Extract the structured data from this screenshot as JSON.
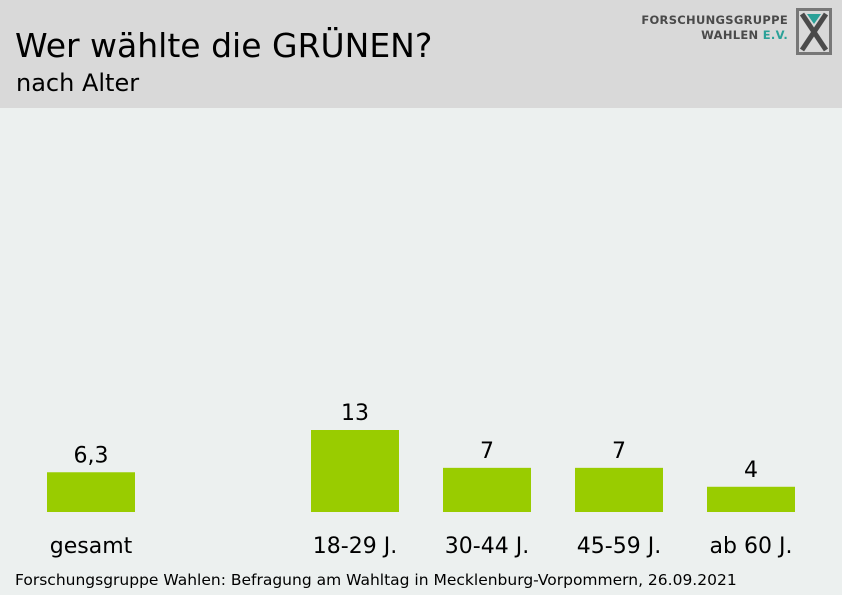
{
  "header": {
    "title": "Wer wählte die GRÜNEN?",
    "subtitle": "nach Alter"
  },
  "logo": {
    "line1": "FORSCHUNGSGRUPPE",
    "line2_main": "WAHLEN ",
    "line2_accent": "E.V.",
    "icon": "x-mark-logo-icon"
  },
  "source": "Forschungsgruppe Wahlen: Befragung am Wahltag in Mecklenburg-Vorpommern, 26.09.2021",
  "chart_data": {
    "type": "bar",
    "title": "Wer wählte die GRÜNEN?",
    "subtitle": "nach Alter",
    "categories": [
      "gesamt",
      "18-29 J.",
      "30-44 J.",
      "45-59 J.",
      "ab 60 J."
    ],
    "values": [
      6.3,
      13,
      7,
      7,
      4
    ],
    "value_labels": [
      "6,3",
      "13",
      "7",
      "7",
      "4"
    ],
    "bar_color": "#99cc00",
    "xlabel": "",
    "ylabel": "",
    "ylim": [
      0,
      13
    ],
    "grid": false,
    "legend": "none"
  }
}
